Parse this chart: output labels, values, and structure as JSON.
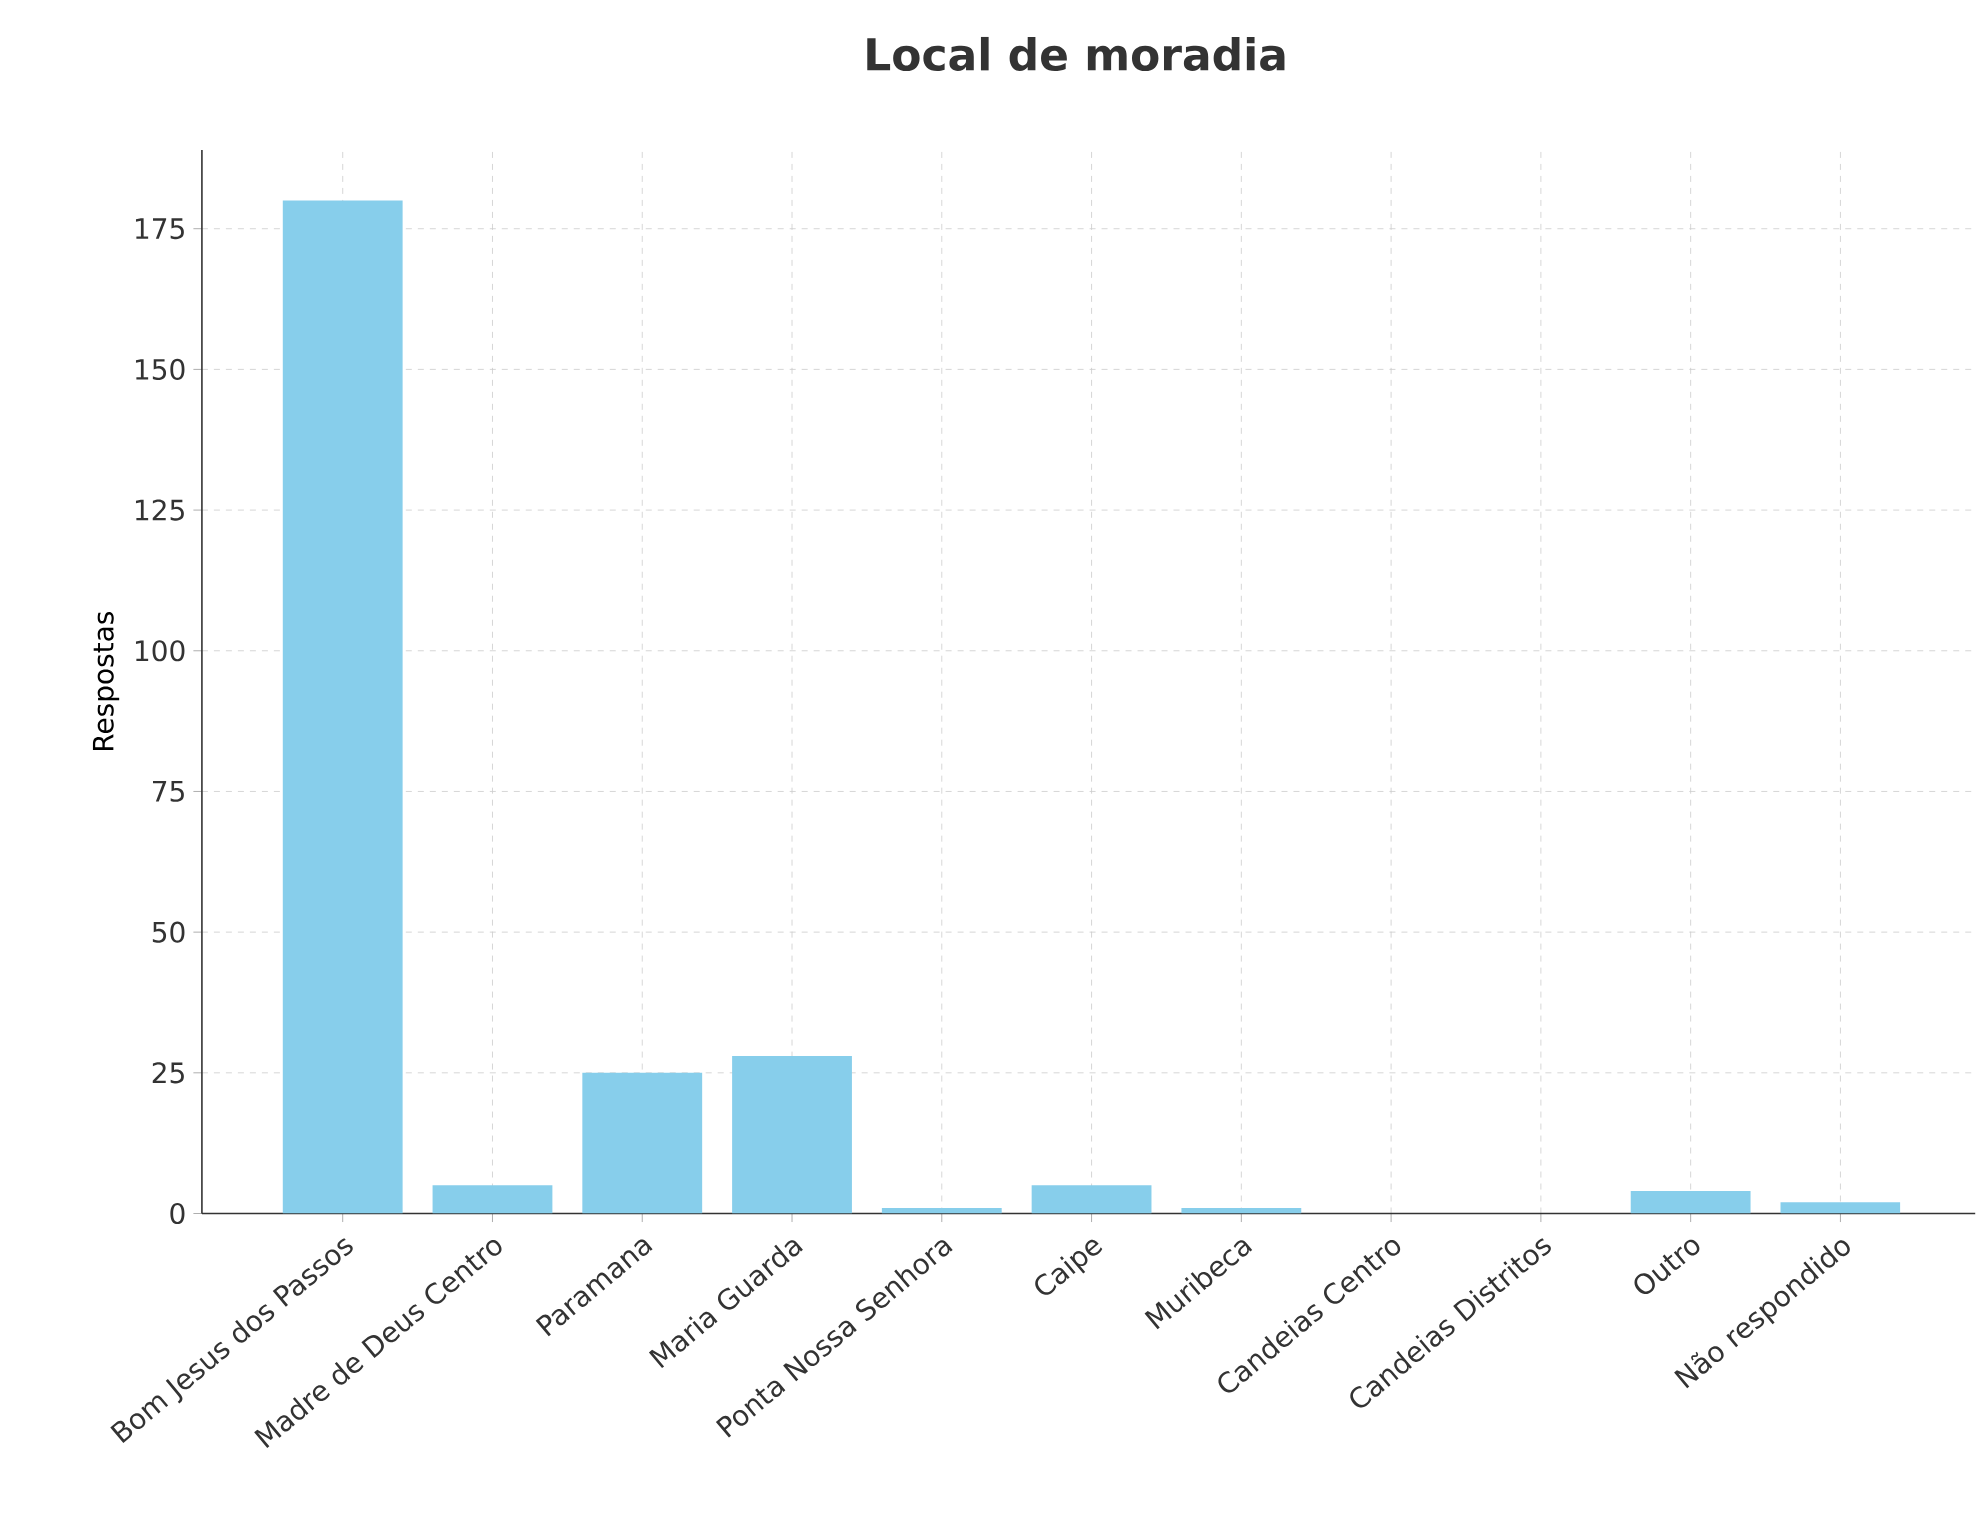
{
  "chart_data": {
    "type": "bar",
    "title": "Local de moradia",
    "ylabel": "Respostas",
    "categories": [
      "Bom Jesus dos Passos",
      "Madre de Deus Centro",
      "Paramana",
      "Maria Guarda",
      "Ponta Nossa Senhora",
      "Caipe",
      "Muribeca",
      "Candeias Centro",
      "Candeias Distritos",
      "Outro",
      "Não respondido"
    ],
    "values": [
      180,
      5,
      25,
      28,
      1,
      5,
      1,
      0,
      0,
      4,
      2
    ],
    "color": "#87ceeb",
    "ylim": [
      0,
      189
    ],
    "yticks": [
      0,
      25,
      50,
      75,
      100,
      125,
      150,
      175
    ],
    "grid": true
  }
}
